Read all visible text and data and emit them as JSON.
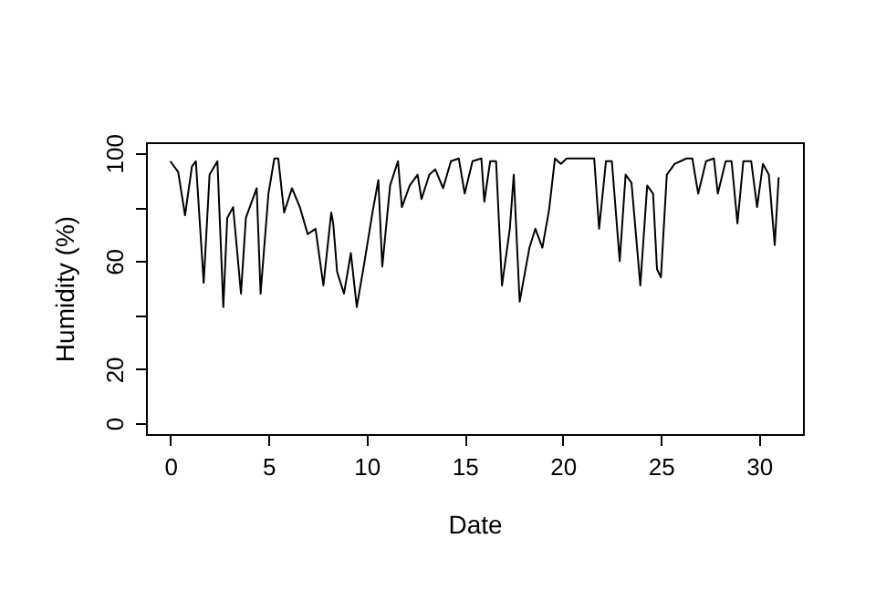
{
  "chart_data": {
    "type": "line",
    "xlabel": "Date",
    "ylabel": "Humidity (%)",
    "x": [
      0,
      0.4,
      0.75,
      1.1,
      1.3,
      1.7,
      2.0,
      2.4,
      2.7,
      2.9,
      3.2,
      3.6,
      3.85,
      4.4,
      4.6,
      5.0,
      5.3,
      5.5,
      5.8,
      6.2,
      6.6,
      7.0,
      7.4,
      7.8,
      8.2,
      8.3,
      8.5,
      8.85,
      9.2,
      9.5,
      9.9,
      10.3,
      10.6,
      10.8,
      11.2,
      11.6,
      11.8,
      12.2,
      12.6,
      12.8,
      13.2,
      13.5,
      13.9,
      14.3,
      14.7,
      15.0,
      15.4,
      15.85,
      16.0,
      16.3,
      16.6,
      16.9,
      17.3,
      17.5,
      17.8,
      18.3,
      18.6,
      18.96,
      19.3,
      19.6,
      19.9,
      20.2,
      21.6,
      21.85,
      22.2,
      22.5,
      22.9,
      23.2,
      23.5,
      23.95,
      24.3,
      24.6,
      24.8,
      25.0,
      25.3,
      25.7,
      26.0,
      26.3,
      26.6,
      26.9,
      27.3,
      27.7,
      27.9,
      28.3,
      28.6,
      28.9,
      29.2,
      29.6,
      29.9,
      30.2,
      30.5,
      30.8,
      31.0
    ],
    "series": [
      {
        "color": "#000000",
        "values": [
          97,
          93,
          77,
          95,
          97,
          52,
          92,
          97,
          43,
          76,
          80,
          48,
          76,
          87,
          48,
          85,
          98,
          98,
          78,
          87,
          80,
          70,
          72,
          51,
          78,
          74,
          56,
          48,
          63,
          43,
          60,
          78,
          90,
          58,
          88,
          97,
          80,
          88,
          92,
          83,
          92,
          94,
          87,
          97,
          98,
          85,
          97,
          98,
          82,
          97,
          97,
          51,
          72,
          92,
          45,
          65,
          72,
          65,
          79,
          98,
          96,
          98,
          98,
          72,
          97,
          97,
          60,
          92,
          89,
          51,
          88,
          85,
          57,
          54,
          92,
          96,
          97,
          98,
          98,
          85,
          97,
          98,
          85,
          97,
          97,
          74,
          97,
          97,
          80,
          96,
          92,
          66,
          91
        ]
      }
    ],
    "xlim": [
      -1.24,
      32.24
    ],
    "ylim": [
      -4,
      104
    ],
    "xticks": [
      0,
      5,
      10,
      15,
      20,
      25,
      30
    ],
    "yticks": [
      0,
      20,
      {
        "value": 40,
        "label": null
      },
      60,
      {
        "value": 80,
        "label": null
      },
      100
    ],
    "grid": false,
    "line_style": "solid",
    "marker": "none"
  }
}
